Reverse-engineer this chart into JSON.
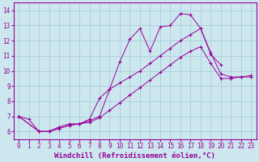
{
  "background_color": "#cce8ee",
  "grid_color": "#aaccdd",
  "line_color": "#990099",
  "xlabel": "Windchill (Refroidissement éolien,°C)",
  "xlabel_fontsize": 6.5,
  "tick_fontsize": 5.5,
  "xlim": [
    -0.5,
    23.5
  ],
  "ylim": [
    5.5,
    14.5
  ],
  "xticks": [
    0,
    1,
    2,
    3,
    4,
    5,
    6,
    7,
    8,
    9,
    10,
    11,
    12,
    13,
    14,
    15,
    16,
    17,
    18,
    19,
    20,
    21,
    22,
    23
  ],
  "yticks": [
    6,
    7,
    8,
    9,
    10,
    11,
    12,
    13,
    14
  ],
  "line1_x": [
    0,
    1,
    2,
    3,
    4,
    5,
    6,
    7,
    8,
    9,
    10,
    11,
    12,
    13,
    14,
    15,
    16,
    17,
    18,
    19,
    20
  ],
  "line1_y": [
    7.0,
    6.8,
    6.0,
    6.0,
    6.3,
    6.5,
    6.5,
    6.7,
    7.0,
    8.8,
    10.6,
    12.1,
    12.8,
    11.3,
    12.9,
    13.0,
    13.8,
    13.7,
    12.8,
    11.1,
    10.4
  ],
  "line2_x": [
    0,
    2,
    3,
    4,
    5,
    6,
    7,
    8,
    9,
    10,
    11,
    12,
    13,
    14,
    15,
    16,
    17,
    18,
    19,
    20,
    21,
    22,
    23
  ],
  "line2_y": [
    7.0,
    6.0,
    6.0,
    6.2,
    6.4,
    6.5,
    6.6,
    6.9,
    7.4,
    7.9,
    8.4,
    8.9,
    9.4,
    9.9,
    10.4,
    10.9,
    11.3,
    11.6,
    10.5,
    9.5,
    9.5,
    9.6,
    9.7
  ],
  "line3_x": [
    0,
    2,
    3,
    4,
    5,
    6,
    7,
    8,
    9,
    10,
    11,
    12,
    13,
    14,
    15,
    16,
    17,
    18,
    19,
    20,
    21,
    22,
    23
  ],
  "line3_y": [
    7.0,
    6.0,
    6.0,
    6.2,
    6.4,
    6.5,
    6.8,
    8.2,
    8.8,
    9.2,
    9.6,
    10.0,
    10.5,
    11.0,
    11.5,
    12.0,
    12.4,
    12.8,
    11.2,
    9.8,
    9.6,
    9.6,
    9.6
  ]
}
